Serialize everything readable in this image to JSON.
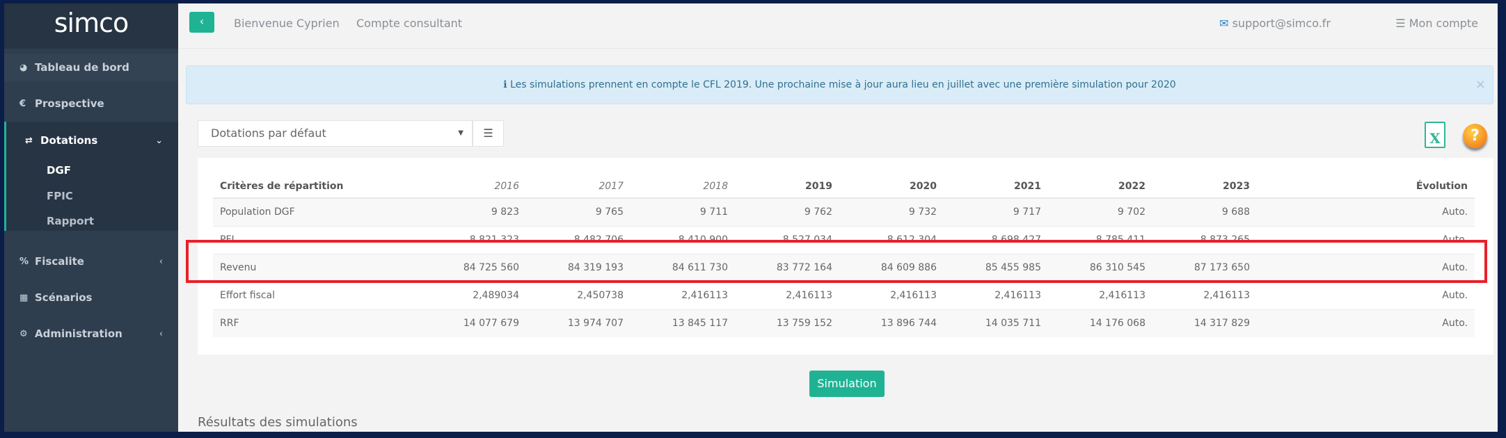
{
  "sidebar": {
    "logo": "simco",
    "items": [
      {
        "label": "Tableau de bord",
        "icon": "dashboard-icon",
        "glyph": "◕"
      },
      {
        "label": "Prospective",
        "icon": "euro-icon",
        "glyph": "€"
      },
      {
        "label": "Dotations",
        "icon": "exchange-icon",
        "glyph": "⇄",
        "chevron": "⌄"
      },
      {
        "label": "Fiscalite",
        "icon": "percent-icon",
        "glyph": "%",
        "chevron": "‹"
      },
      {
        "label": "Scénarios",
        "icon": "grid-icon",
        "glyph": "▦"
      },
      {
        "label": "Administration",
        "icon": "gear-icon",
        "glyph": "⚙",
        "chevron": "‹"
      }
    ],
    "subitems": [
      "DGF",
      "FPIC",
      "Rapport"
    ]
  },
  "topbar": {
    "back": "‹",
    "welcome": "Bienvenue Cyprien",
    "account_type": "Compte consultant",
    "support_email": "support@simco.fr",
    "account_menu": "Mon compte"
  },
  "alert": {
    "text": "Les simulations prennent en compte le CFL 2019. Une prochaine mise à jour aura lieu en juillet avec une première simulation pour 2020",
    "close": "×"
  },
  "select": {
    "value": "Dotations par défaut"
  },
  "table": {
    "headers": [
      "Critères de répartition",
      "2016",
      "2017",
      "2018",
      "2019",
      "2020",
      "2021",
      "2022",
      "2023",
      "",
      "Évolution"
    ],
    "rows": [
      [
        "Population DGF",
        "9 823",
        "9 765",
        "9 711",
        "9 762",
        "9 732",
        "9 717",
        "9 702",
        "9 688",
        "",
        "Auto."
      ],
      [
        "PFI",
        "8 821 323",
        "8 482 706",
        "8 410 900",
        "8 527 034",
        "8 612 304",
        "8 698 427",
        "8 785 411",
        "8 873 265",
        "",
        "Auto."
      ],
      [
        "Revenu",
        "84 725 560",
        "84 319 193",
        "84 611 730",
        "83 772 164",
        "84 609 886",
        "85 455 985",
        "86 310 545",
        "87 173 650",
        "",
        "Auto."
      ],
      [
        "Effort fiscal",
        "2,489034",
        "2,450738",
        "2,416113",
        "2,416113",
        "2,416113",
        "2,416113",
        "2,416113",
        "2,416113",
        "",
        "Auto."
      ],
      [
        "RRF",
        "14 077 679",
        "13 974 707",
        "13 845 117",
        "13 759 152",
        "13 896 744",
        "14 035 711",
        "14 176 068",
        "14 317 829",
        "",
        "Auto."
      ]
    ]
  },
  "simulation_button": "Simulation",
  "results_title": "Résultats des simulations",
  "excel_icon": "X",
  "help_icon": "?",
  "colors": {
    "accent": "#1fb394",
    "sidebar": "#2f3e4f",
    "highlight": "#e8202a"
  }
}
